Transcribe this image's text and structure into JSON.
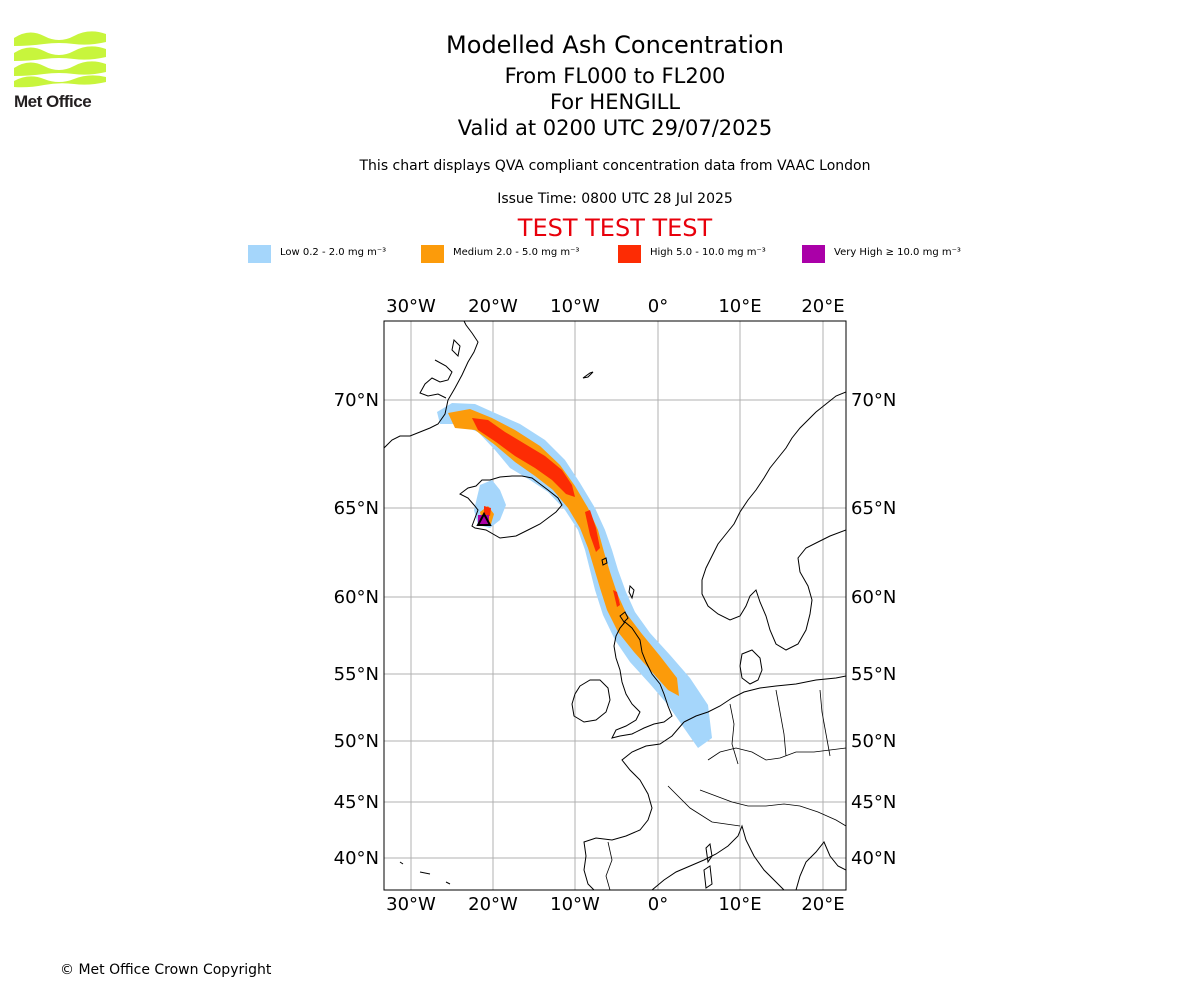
{
  "header": {
    "logo_text": "Met Office",
    "title": "Modelled Ash Concentration",
    "levels": "From FL000 to FL200",
    "volcano": "For HENGILL",
    "valid": "Valid at 0200 UTC 29/07/2025",
    "note": "This chart displays QVA compliant concentration data from VAAC London",
    "issue": "Issue Time: 0800 UTC 28 Jul 2025",
    "test_banner": "TEST TEST TEST"
  },
  "legend": [
    {
      "label": "Low 0.2 - 2.0 mg m⁻³",
      "color": "#a5d6fb"
    },
    {
      "label": "Medium 2.0 - 5.0 mg m⁻³",
      "color": "#fc9b0a"
    },
    {
      "label": "High 5.0 - 10.0 mg m⁻³",
      "color": "#fd2c04"
    },
    {
      "label": "Very High ≥ 10.0 mg m⁻³",
      "color": "#aa00a8"
    }
  ],
  "map": {
    "longitude_ticks": [
      "30°W",
      "20°W",
      "10°W",
      "0°",
      "10°E",
      "20°E"
    ],
    "latitude_ticks": [
      "70°N",
      "65°N",
      "60°N",
      "55°N",
      "50°N",
      "45°N",
      "40°N"
    ],
    "volcano_location": "HENGILL"
  },
  "footer": {
    "copyright": "© Met Office Crown Copyright"
  }
}
